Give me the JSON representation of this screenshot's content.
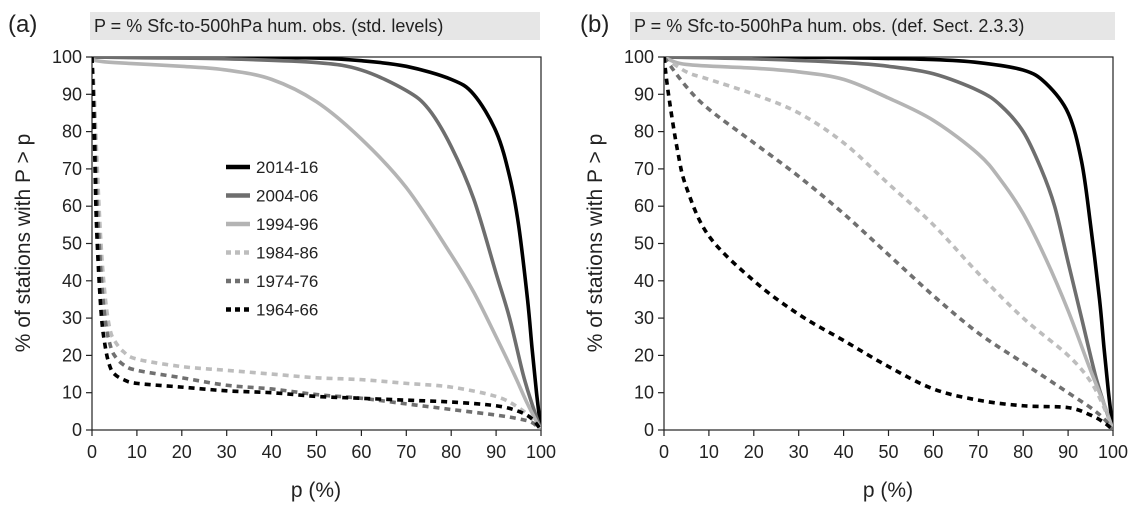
{
  "figure": {
    "panels": [
      {
        "letter": "(a)",
        "title": "P = % Sfc-to-500hPa hum. obs. (std. levels)"
      },
      {
        "letter": "(b)",
        "title": "P = % Sfc-to-500hPa hum. obs. (def. Sect. 2.3.3)"
      }
    ]
  },
  "chart_data": [
    {
      "type": "line",
      "panel": "(a)",
      "title": "P = % Sfc-to-500hPa hum. obs. (std. levels)",
      "xlabel": "p (%)",
      "ylabel": "% of stations with P > p",
      "xlim": [
        0,
        100
      ],
      "ylim": [
        0,
        100
      ],
      "xticks": [
        0,
        10,
        20,
        30,
        40,
        50,
        60,
        70,
        80,
        90,
        100
      ],
      "yticks": [
        0,
        10,
        20,
        30,
        40,
        50,
        60,
        70,
        80,
        90,
        100
      ],
      "grid": false,
      "legend_position": "center-left",
      "series": [
        {
          "name": "2014-16",
          "color": "#000000",
          "dash": "solid",
          "points": [
            [
              0,
              100
            ],
            [
              10,
              100
            ],
            [
              30,
              100
            ],
            [
              50,
              99.7
            ],
            [
              60,
              99
            ],
            [
              70,
              97.5
            ],
            [
              80,
              94
            ],
            [
              85,
              90
            ],
            [
              90,
              80
            ],
            [
              93,
              68
            ],
            [
              95,
              55
            ],
            [
              97,
              35
            ],
            [
              98,
              22
            ],
            [
              99,
              10
            ],
            [
              100,
              0
            ]
          ]
        },
        {
          "name": "2004-06",
          "color": "#6e6e6e",
          "dash": "solid",
          "points": [
            [
              0,
              100
            ],
            [
              10,
              99.8
            ],
            [
              30,
              99.5
            ],
            [
              50,
              98.5
            ],
            [
              60,
              96.5
            ],
            [
              70,
              91
            ],
            [
              75,
              86
            ],
            [
              80,
              76
            ],
            [
              85,
              62
            ],
            [
              90,
              42
            ],
            [
              93,
              30
            ],
            [
              96,
              15
            ],
            [
              98,
              7
            ],
            [
              100,
              0
            ]
          ]
        },
        {
          "name": "1994-96",
          "color": "#b4b4b4",
          "dash": "solid",
          "points": [
            [
              0,
              99.5
            ],
            [
              1,
              99
            ],
            [
              5,
              98.5
            ],
            [
              20,
              97.5
            ],
            [
              30,
              96.5
            ],
            [
              40,
              94
            ],
            [
              50,
              88
            ],
            [
              60,
              78
            ],
            [
              70,
              65
            ],
            [
              80,
              47
            ],
            [
              85,
              37
            ],
            [
              90,
              25
            ],
            [
              94,
              15
            ],
            [
              97,
              7
            ],
            [
              100,
              0
            ]
          ]
        },
        {
          "name": "1984-86",
          "color": "#bdbdbd",
          "dash": "dashed",
          "points": [
            [
              0,
              100
            ],
            [
              0.5,
              90
            ],
            [
              1,
              75
            ],
            [
              2,
              50
            ],
            [
              3,
              35
            ],
            [
              4,
              27
            ],
            [
              5,
              24
            ],
            [
              7,
              21
            ],
            [
              10,
              19
            ],
            [
              20,
              17
            ],
            [
              30,
              16
            ],
            [
              40,
              15
            ],
            [
              50,
              14
            ],
            [
              60,
              13.5
            ],
            [
              70,
              12.5
            ],
            [
              80,
              11.5
            ],
            [
              90,
              9
            ],
            [
              95,
              6
            ],
            [
              98,
              3
            ],
            [
              100,
              0
            ]
          ]
        },
        {
          "name": "1974-76",
          "color": "#707070",
          "dash": "dashed",
          "points": [
            [
              0,
              100
            ],
            [
              0.5,
              85
            ],
            [
              1,
              65
            ],
            [
              2,
              42
            ],
            [
              3,
              29
            ],
            [
              4,
              23
            ],
            [
              5,
              20
            ],
            [
              7,
              17.5
            ],
            [
              10,
              16
            ],
            [
              20,
              14
            ],
            [
              30,
              12
            ],
            [
              40,
              11
            ],
            [
              50,
              9.5
            ],
            [
              60,
              8.5
            ],
            [
              70,
              7
            ],
            [
              80,
              5.5
            ],
            [
              90,
              4
            ],
            [
              95,
              3
            ],
            [
              98,
              2
            ],
            [
              100,
              0
            ]
          ]
        },
        {
          "name": "1964-66",
          "color": "#000000",
          "dash": "dashed",
          "points": [
            [
              0,
              100
            ],
            [
              0.5,
              80
            ],
            [
              1,
              55
            ],
            [
              2,
              32
            ],
            [
              3,
              22
            ],
            [
              4,
              17
            ],
            [
              5,
              15
            ],
            [
              7,
              13.5
            ],
            [
              10,
              12.5
            ],
            [
              20,
              11.5
            ],
            [
              30,
              10.5
            ],
            [
              40,
              10
            ],
            [
              50,
              9
            ],
            [
              60,
              8.5
            ],
            [
              70,
              8
            ],
            [
              80,
              7.5
            ],
            [
              90,
              6.5
            ],
            [
              95,
              5
            ],
            [
              98,
              3
            ],
            [
              100,
              0
            ]
          ]
        }
      ]
    },
    {
      "type": "line",
      "panel": "(b)",
      "title": "P = % Sfc-to-500hPa hum. obs. (def. Sect. 2.3.3)",
      "xlabel": "p (%)",
      "ylabel": "% of stations with P > p",
      "xlim": [
        0,
        100
      ],
      "ylim": [
        0,
        100
      ],
      "xticks": [
        0,
        10,
        20,
        30,
        40,
        50,
        60,
        70,
        80,
        90,
        100
      ],
      "yticks": [
        0,
        10,
        20,
        30,
        40,
        50,
        60,
        70,
        80,
        90,
        100
      ],
      "grid": false,
      "series": [
        {
          "name": "2014-16",
          "color": "#000000",
          "dash": "solid",
          "points": [
            [
              0,
              100
            ],
            [
              20,
              100
            ],
            [
              40,
              99.8
            ],
            [
              60,
              99.3
            ],
            [
              70,
              98.5
            ],
            [
              80,
              96.5
            ],
            [
              85,
              93
            ],
            [
              90,
              85
            ],
            [
              93,
              72
            ],
            [
              95,
              55
            ],
            [
              97,
              35
            ],
            [
              98,
              22
            ],
            [
              99,
              10
            ],
            [
              100,
              0
            ]
          ]
        },
        {
          "name": "2004-06",
          "color": "#6e6e6e",
          "dash": "solid",
          "points": [
            [
              0,
              100
            ],
            [
              20,
              99.5
            ],
            [
              40,
              98.5
            ],
            [
              50,
              97.5
            ],
            [
              60,
              95.5
            ],
            [
              70,
              91
            ],
            [
              75,
              87
            ],
            [
              80,
              80
            ],
            [
              84,
              70
            ],
            [
              87,
              60
            ],
            [
              90,
              45
            ],
            [
              93,
              30
            ],
            [
              96,
              15
            ],
            [
              98,
              7
            ],
            [
              100,
              0
            ]
          ]
        },
        {
          "name": "1994-96",
          "color": "#b4b4b4",
          "dash": "solid",
          "points": [
            [
              0,
              100
            ],
            [
              5,
              98
            ],
            [
              20,
              97
            ],
            [
              30,
              96
            ],
            [
              40,
              94
            ],
            [
              50,
              89
            ],
            [
              60,
              83
            ],
            [
              70,
              74
            ],
            [
              75,
              67
            ],
            [
              80,
              58
            ],
            [
              85,
              46
            ],
            [
              90,
              32
            ],
            [
              95,
              16
            ],
            [
              98,
              7
            ],
            [
              100,
              0
            ]
          ]
        },
        {
          "name": "1984-86",
          "color": "#bdbdbd",
          "dash": "dashed",
          "points": [
            [
              0,
              100
            ],
            [
              5,
              96
            ],
            [
              10,
              94
            ],
            [
              20,
              90
            ],
            [
              30,
              85
            ],
            [
              40,
              77
            ],
            [
              50,
              66
            ],
            [
              60,
              55
            ],
            [
              70,
              42
            ],
            [
              80,
              30
            ],
            [
              90,
              20
            ],
            [
              95,
              13
            ],
            [
              98,
              6
            ],
            [
              100,
              0
            ]
          ]
        },
        {
          "name": "1974-76",
          "color": "#707070",
          "dash": "dashed",
          "points": [
            [
              0,
              100
            ],
            [
              5,
              92
            ],
            [
              10,
              86
            ],
            [
              20,
              77
            ],
            [
              30,
              68
            ],
            [
              40,
              58
            ],
            [
              50,
              47
            ],
            [
              60,
              36
            ],
            [
              70,
              26
            ],
            [
              80,
              18
            ],
            [
              90,
              10
            ],
            [
              95,
              6
            ],
            [
              98,
              3
            ],
            [
              100,
              0
            ]
          ]
        },
        {
          "name": "1964-66",
          "color": "#000000",
          "dash": "dashed",
          "points": [
            [
              0,
              100
            ],
            [
              1,
              90
            ],
            [
              3,
              75
            ],
            [
              5,
              65
            ],
            [
              10,
              52
            ],
            [
              20,
              40
            ],
            [
              30,
              31
            ],
            [
              40,
              24
            ],
            [
              50,
              17
            ],
            [
              60,
              11
            ],
            [
              70,
              8
            ],
            [
              80,
              6.5
            ],
            [
              90,
              6
            ],
            [
              95,
              4
            ],
            [
              98,
              2
            ],
            [
              100,
              0
            ]
          ]
        }
      ]
    }
  ]
}
